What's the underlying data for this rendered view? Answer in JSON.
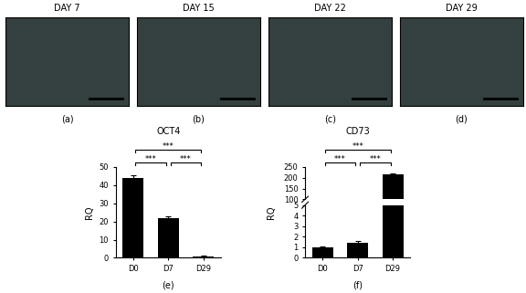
{
  "images": [
    {
      "label": "(a)",
      "title": "DAY 7"
    },
    {
      "label": "(b)",
      "title": "DAY 15"
    },
    {
      "label": "(c)",
      "title": "DAY 22"
    },
    {
      "label": "(d)",
      "title": "DAY 29"
    }
  ],
  "chart_data": [
    {
      "type": "bar",
      "label": "(e)",
      "title": "OCT4",
      "y_label": "RQ",
      "categories": [
        "D0",
        "D7",
        "D29"
      ],
      "values": [
        44,
        22,
        0.8
      ],
      "errors": [
        1.5,
        0.8,
        0.3
      ],
      "color": "#000000",
      "ylim": [
        0,
        50
      ],
      "yticks": [
        0,
        10,
        20,
        30,
        40,
        50
      ],
      "significance": [
        {
          "from": "D0",
          "to": "D29",
          "text": "***"
        },
        {
          "from": "D0",
          "to": "D7",
          "text": "***"
        },
        {
          "from": "D7",
          "to": "D29",
          "text": "***"
        }
      ]
    },
    {
      "type": "bar",
      "label": "(f)",
      "title": "CD73",
      "y_label": "RQ",
      "categories": [
        "D0",
        "D7",
        "D29"
      ],
      "values": [
        1.0,
        1.45,
        215
      ],
      "errors": [
        0.1,
        0.12,
        5
      ],
      "color": "#000000",
      "broken_axis": [
        {
          "ylim": [
            0,
            5
          ],
          "yticks": [
            0,
            1,
            2,
            3,
            4,
            5
          ]
        },
        {
          "ylim": [
            100,
            250
          ],
          "yticks": [
            100,
            150,
            200,
            250
          ]
        }
      ],
      "significance": [
        {
          "from": "D0",
          "to": "D29",
          "text": "***"
        },
        {
          "from": "D0",
          "to": "D7",
          "text": "***"
        },
        {
          "from": "D7",
          "to": "D29",
          "text": "***"
        }
      ]
    }
  ]
}
